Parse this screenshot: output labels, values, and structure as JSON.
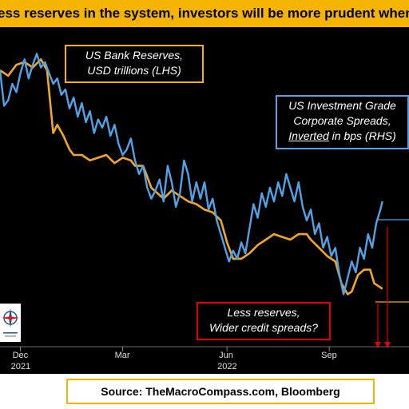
{
  "banner": {
    "text": "ess reserves in the system, investors will be more prudent when takin"
  },
  "annotations": {
    "reserves_line1": "US Bank Reserves,",
    "reserves_line2": "USD trillions (LHS)",
    "spreads_line1": "US Investment Grade",
    "spreads_line2": "Corporate Spreads,",
    "spreads_inverted": "Inverted",
    "spreads_line3_rest": " in bps (RHS)",
    "less_line1": "Less reserves,",
    "less_line2": "Wider credit spreads?"
  },
  "source": {
    "text": "Source: TheMacroCompass.com, Bloomberg"
  },
  "colors": {
    "banner": "#f5b400",
    "reserves": "#f5a623",
    "spreads": "#4fa3e6",
    "annotation_red": "#e00000",
    "background": "#000000"
  },
  "logo": {
    "icon": "compass-logo-icon"
  },
  "chart_data": {
    "type": "line",
    "title": "",
    "xlabel": "",
    "ylabel": "",
    "x_ticks": [
      {
        "label": "Dec",
        "year": "2021",
        "t": 0.05
      },
      {
        "label": "Mar",
        "year": "",
        "t": 0.3
      },
      {
        "label": "Jun",
        "year": "2022",
        "t": 0.555
      },
      {
        "label": "Sep",
        "year": "",
        "t": 0.805
      }
    ],
    "series": [
      {
        "name": "US Bank Reserves",
        "axis": "left",
        "points": [
          [
            0.0,
            0.93
          ],
          [
            0.02,
            0.91
          ],
          [
            0.04,
            0.95
          ],
          [
            0.06,
            0.96
          ],
          [
            0.08,
            0.94
          ],
          [
            0.1,
            0.97
          ],
          [
            0.115,
            0.93
          ],
          [
            0.13,
            0.7
          ],
          [
            0.14,
            0.73
          ],
          [
            0.155,
            0.69
          ],
          [
            0.17,
            0.64
          ],
          [
            0.18,
            0.62
          ],
          [
            0.2,
            0.62
          ],
          [
            0.22,
            0.6
          ],
          [
            0.24,
            0.61
          ],
          [
            0.26,
            0.62
          ],
          [
            0.28,
            0.59
          ],
          [
            0.3,
            0.61
          ],
          [
            0.32,
            0.6
          ],
          [
            0.33,
            0.58
          ],
          [
            0.35,
            0.58
          ],
          [
            0.37,
            0.5
          ],
          [
            0.4,
            0.46
          ],
          [
            0.42,
            0.49
          ],
          [
            0.44,
            0.47
          ],
          [
            0.46,
            0.45
          ],
          [
            0.48,
            0.44
          ],
          [
            0.5,
            0.42
          ],
          [
            0.52,
            0.41
          ],
          [
            0.54,
            0.38
          ],
          [
            0.555,
            0.3
          ],
          [
            0.57,
            0.24
          ],
          [
            0.59,
            0.24
          ],
          [
            0.61,
            0.26
          ],
          [
            0.63,
            0.29
          ],
          [
            0.65,
            0.31
          ],
          [
            0.67,
            0.33
          ],
          [
            0.69,
            0.32
          ],
          [
            0.71,
            0.31
          ],
          [
            0.73,
            0.33
          ],
          [
            0.75,
            0.33
          ],
          [
            0.76,
            0.31
          ],
          [
            0.78,
            0.28
          ],
          [
            0.8,
            0.25
          ],
          [
            0.82,
            0.23
          ],
          [
            0.835,
            0.15
          ],
          [
            0.85,
            0.11
          ],
          [
            0.86,
            0.12
          ],
          [
            0.875,
            0.18
          ],
          [
            0.89,
            0.2
          ],
          [
            0.905,
            0.2
          ],
          [
            0.915,
            0.15
          ],
          [
            0.925,
            0.14
          ],
          [
            0.935,
            0.13
          ]
        ]
      },
      {
        "name": "US Investment Grade Corporate Spreads",
        "axis": "right",
        "points": [
          [
            0.0,
            0.93
          ],
          [
            0.01,
            0.8
          ],
          [
            0.02,
            0.82
          ],
          [
            0.03,
            0.88
          ],
          [
            0.04,
            0.85
          ],
          [
            0.05,
            0.92
          ],
          [
            0.06,
            0.97
          ],
          [
            0.07,
            0.9
          ],
          [
            0.08,
            0.95
          ],
          [
            0.09,
            0.99
          ],
          [
            0.1,
            0.94
          ],
          [
            0.11,
            0.96
          ],
          [
            0.12,
            0.92
          ],
          [
            0.13,
            0.88
          ],
          [
            0.14,
            0.9
          ],
          [
            0.15,
            0.84
          ],
          [
            0.16,
            0.86
          ],
          [
            0.17,
            0.79
          ],
          [
            0.18,
            0.83
          ],
          [
            0.19,
            0.76
          ],
          [
            0.2,
            0.81
          ],
          [
            0.21,
            0.74
          ],
          [
            0.22,
            0.78
          ],
          [
            0.23,
            0.7
          ],
          [
            0.24,
            0.75
          ],
          [
            0.25,
            0.72
          ],
          [
            0.26,
            0.76
          ],
          [
            0.27,
            0.69
          ],
          [
            0.28,
            0.73
          ],
          [
            0.29,
            0.66
          ],
          [
            0.3,
            0.62
          ],
          [
            0.31,
            0.64
          ],
          [
            0.32,
            0.68
          ],
          [
            0.33,
            0.6
          ],
          [
            0.34,
            0.55
          ],
          [
            0.35,
            0.58
          ],
          [
            0.36,
            0.5
          ],
          [
            0.37,
            0.46
          ],
          [
            0.38,
            0.49
          ],
          [
            0.39,
            0.53
          ],
          [
            0.4,
            0.45
          ],
          [
            0.41,
            0.58
          ],
          [
            0.42,
            0.52
          ],
          [
            0.43,
            0.43
          ],
          [
            0.44,
            0.48
          ],
          [
            0.45,
            0.6
          ],
          [
            0.46,
            0.55
          ],
          [
            0.47,
            0.45
          ],
          [
            0.48,
            0.52
          ],
          [
            0.49,
            0.46
          ],
          [
            0.5,
            0.52
          ],
          [
            0.51,
            0.42
          ],
          [
            0.52,
            0.46
          ],
          [
            0.53,
            0.38
          ],
          [
            0.54,
            0.33
          ],
          [
            0.55,
            0.28
          ],
          [
            0.56,
            0.23
          ],
          [
            0.57,
            0.27
          ],
          [
            0.58,
            0.24
          ],
          [
            0.59,
            0.3
          ],
          [
            0.6,
            0.26
          ],
          [
            0.61,
            0.35
          ],
          [
            0.62,
            0.44
          ],
          [
            0.63,
            0.39
          ],
          [
            0.64,
            0.48
          ],
          [
            0.65,
            0.43
          ],
          [
            0.66,
            0.5
          ],
          [
            0.67,
            0.45
          ],
          [
            0.68,
            0.52
          ],
          [
            0.69,
            0.47
          ],
          [
            0.7,
            0.55
          ],
          [
            0.71,
            0.5
          ],
          [
            0.72,
            0.45
          ],
          [
            0.73,
            0.52
          ],
          [
            0.74,
            0.43
          ],
          [
            0.75,
            0.38
          ],
          [
            0.76,
            0.42
          ],
          [
            0.77,
            0.33
          ],
          [
            0.78,
            0.37
          ],
          [
            0.79,
            0.28
          ],
          [
            0.8,
            0.32
          ],
          [
            0.81,
            0.25
          ],
          [
            0.82,
            0.28
          ],
          [
            0.83,
            0.18
          ],
          [
            0.84,
            0.11
          ],
          [
            0.85,
            0.17
          ],
          [
            0.86,
            0.23
          ],
          [
            0.87,
            0.19
          ],
          [
            0.88,
            0.28
          ],
          [
            0.89,
            0.24
          ],
          [
            0.9,
            0.33
          ],
          [
            0.91,
            0.28
          ],
          [
            0.92,
            0.37
          ],
          [
            0.93,
            0.42
          ],
          [
            0.935,
            0.45
          ]
        ]
      }
    ],
    "legend": "none",
    "grid": false
  }
}
